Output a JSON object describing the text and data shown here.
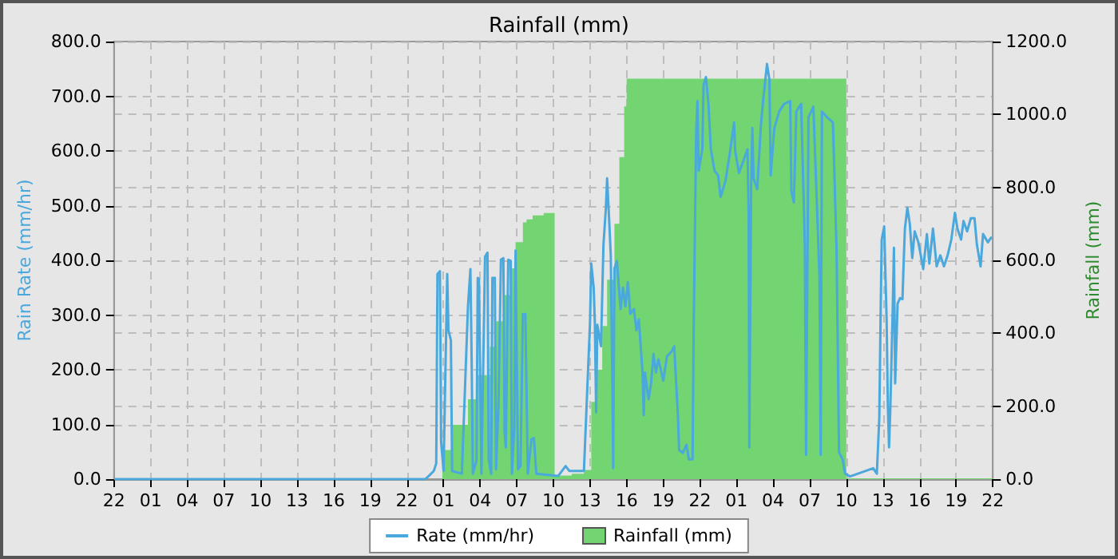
{
  "chart_data": {
    "type": "line",
    "title": "Rainfall (mm)",
    "ylabel": "Rain Rate (mm/hr)",
    "y2label": "Rainfall (mm)",
    "xlim": [
      "--01-01T22:00",
      "--01-04T22:00"
    ],
    "xticks": [
      {
        "value": "--01-01T22:00",
        "label": "22"
      },
      {
        "value": "--01-02T01:00",
        "label": "01"
      },
      {
        "value": "--01-02T04:00",
        "label": "04"
      },
      {
        "value": "--01-02T07:00",
        "label": "07"
      },
      {
        "value": "--01-02T10:00",
        "label": "10"
      },
      {
        "value": "--01-02T13:00",
        "label": "13"
      },
      {
        "value": "--01-02T16:00",
        "label": "16"
      },
      {
        "value": "--01-02T19:00",
        "label": "19"
      },
      {
        "value": "--01-02T22:00",
        "label": "22"
      },
      {
        "value": "--01-03T01:00",
        "label": "01"
      },
      {
        "value": "--01-03T04:00",
        "label": "04"
      },
      {
        "value": "--01-03T07:00",
        "label": "07"
      },
      {
        "value": "--01-03T10:00",
        "label": "10"
      },
      {
        "value": "--01-03T13:00",
        "label": "13"
      },
      {
        "value": "--01-03T16:00",
        "label": "16"
      },
      {
        "value": "--01-03T19:00",
        "label": "19"
      },
      {
        "value": "--01-03T22:00",
        "label": "22"
      },
      {
        "value": "--01-04T01:00",
        "label": "01"
      },
      {
        "value": "--01-04T04:00",
        "label": "04"
      },
      {
        "value": "--01-04T07:00",
        "label": "07"
      },
      {
        "value": "--01-04T10:00",
        "label": "10"
      },
      {
        "value": "--01-04T13:00",
        "label": "13"
      },
      {
        "value": "--01-04T16:00",
        "label": "16"
      },
      {
        "value": "--01-04T19:00",
        "label": "19"
      },
      {
        "value": "--01-04T22:00",
        "label": "22"
      }
    ],
    "ylim": [
      0,
      800
    ],
    "yticks": [
      {
        "value": 0,
        "label": "0.0"
      },
      {
        "value": 100,
        "label": "100.0"
      },
      {
        "value": 200,
        "label": "200.0"
      },
      {
        "value": 300,
        "label": "300.0"
      },
      {
        "value": 400,
        "label": "400.0"
      },
      {
        "value": 500,
        "label": "500.0"
      },
      {
        "value": 600,
        "label": "600.0"
      },
      {
        "value": 700,
        "label": "700.0"
      },
      {
        "value": 800,
        "label": "800.0"
      }
    ],
    "y2lim": [
      0,
      1200
    ],
    "y2ticks": [
      {
        "value": 0,
        "label": "0.0"
      },
      {
        "value": 200,
        "label": "200.0"
      },
      {
        "value": 400,
        "label": "400.0"
      },
      {
        "value": 600,
        "label": "600.0"
      },
      {
        "value": 800,
        "label": "800.0"
      },
      {
        "value": 1000,
        "label": "1000.0"
      },
      {
        "value": 1200,
        "label": "1200.0"
      }
    ],
    "grid": true,
    "legend": "bottom",
    "marker": "none",
    "series": [
      {
        "name": "Rainfall (mm)",
        "type": "area",
        "axis": "y2",
        "color": "#72d572",
        "x": [
          "--01-01T22:00",
          "--01-03T00:48",
          "--01-03T00:54",
          "--01-03T01:42",
          "--01-03T03:00",
          "--01-03T03:42",
          "--01-03T04:48",
          "--01-03T05:18",
          "--01-03T06:00",
          "--01-03T06:36",
          "--01-03T06:54",
          "--01-03T07:30",
          "--01-03T07:48",
          "--01-03T08:18",
          "--01-03T09:12",
          "--01-03T10:06",
          "--01-03T11:30",
          "--01-03T12:30",
          "--01-03T13:06",
          "--01-03T13:36",
          "--01-03T14:00",
          "--01-03T14:24",
          "--01-03T15:00",
          "--01-03T15:24",
          "--01-03T15:48",
          "--01-03T16:00",
          "--01-04T10:00",
          "--01-04T22:00"
        ],
        "values": [
          0,
          0,
          80,
          149,
          219,
          285,
          363,
          433,
          505,
          578,
          650,
          704,
          712,
          723,
          730,
          10,
          15,
          25,
          212,
          300,
          420,
          547,
          700,
          883,
          1022,
          1098,
          2,
          2
        ]
      },
      {
        "name": "Rate (mm/hr)",
        "color": "#4aa8dc",
        "x": [
          "--01-01T22:00",
          "--01-02T23:30",
          "--01-02T23:48",
          "--01-03T00:12",
          "--01-03T00:24",
          "--01-03T00:30",
          "--01-03T00:42",
          "--01-03T00:48",
          "--01-03T01:00",
          "--01-03T01:18",
          "--01-03T01:24",
          "--01-03T01:36",
          "--01-03T01:42",
          "--01-03T02:30",
          "--01-03T03:00",
          "--01-03T03:12",
          "--01-03T03:18",
          "--01-03T03:24",
          "--01-03T03:42",
          "--01-03T03:48",
          "--01-03T03:54",
          "--01-03T04:06",
          "--01-03T04:24",
          "--01-03T04:36",
          "--01-03T04:42",
          "--01-03T04:54",
          "--01-03T05:00",
          "--01-03T05:12",
          "--01-03T05:18",
          "--01-03T05:30",
          "--01-03T05:42",
          "--01-03T05:54",
          "--01-03T06:00",
          "--01-03T06:06",
          "--01-03T06:18",
          "--01-03T06:30",
          "--01-03T06:36",
          "--01-03T06:48",
          "--01-03T06:54",
          "--01-03T07:06",
          "--01-03T07:18",
          "--01-03T07:30",
          "--01-03T07:42",
          "--01-03T07:54",
          "--01-03T08:12",
          "--01-03T08:24",
          "--01-03T08:36",
          "--01-03T10:24",
          "--01-03T11:00",
          "--01-03T11:18",
          "--01-03T12:30",
          "--01-03T13:00",
          "--01-03T13:06",
          "--01-03T13:18",
          "--01-03T13:24",
          "--01-03T13:30",
          "--01-03T13:36",
          "--01-03T13:54",
          "--01-03T14:00",
          "--01-03T14:06",
          "--01-03T14:18",
          "--01-03T14:24",
          "--01-03T14:36",
          "--01-03T14:42",
          "--01-03T14:48",
          "--01-03T14:54",
          "--01-03T15:00",
          "--01-03T15:12",
          "--01-03T15:18",
          "--01-03T15:30",
          "--01-03T15:42",
          "--01-03T15:54",
          "--01-03T16:06",
          "--01-03T16:18",
          "--01-03T16:36",
          "--01-03T16:48",
          "--01-03T17:00",
          "--01-03T17:18",
          "--01-03T17:24",
          "--01-03T17:30",
          "--01-03T17:48",
          "--01-03T18:00",
          "--01-03T18:12",
          "--01-03T18:24",
          "--01-03T18:36",
          "--01-03T18:48",
          "--01-03T19:00",
          "--01-03T19:18",
          "--01-03T19:42",
          "--01-03T19:54",
          "--01-03T20:00",
          "--01-03T20:12",
          "--01-03T20:18",
          "--01-03T20:36",
          "--01-03T20:54",
          "--01-03T21:06",
          "--01-03T21:24",
          "--01-03T21:30",
          "--01-03T21:42",
          "--01-03T21:48",
          "--01-03T21:54",
          "--01-03T22:12",
          "--01-03T22:18",
          "--01-03T22:30",
          "--01-03T22:42",
          "--01-03T22:54",
          "--01-03T23:12",
          "--01-03T23:30",
          "--01-03T23:42",
          "--01-04T00:06",
          "--01-04T00:30",
          "--01-04T00:48",
          "--01-04T00:54",
          "--01-04T01:12",
          "--01-04T01:36",
          "--01-04T01:54",
          "--01-04T02:00",
          "--01-04T02:03",
          "--01-04T02:12",
          "--01-04T02:18",
          "--01-04T02:24",
          "--01-04T02:42",
          "--01-04T03:00",
          "--01-04T03:12",
          "--01-04T03:30",
          "--01-04T03:42",
          "--01-04T03:48",
          "--01-04T04:06",
          "--01-04T04:30",
          "--01-04T04:54",
          "--01-04T05:24",
          "--01-04T05:30",
          "--01-04T05:42",
          "--01-04T05:54",
          "--01-04T06:18",
          "--01-04T06:36",
          "--01-04T06:42",
          "--01-04T06:54",
          "--01-04T07:18",
          "--01-04T07:48",
          "--01-04T07:54",
          "--01-04T08:00",
          "--01-04T08:24",
          "--01-04T08:54",
          "--01-04T09:12",
          "--01-04T09:24",
          "--01-04T09:42",
          "--01-04T09:54",
          "--01-04T10:18",
          "--01-04T12:12",
          "--01-04T12:30",
          "--01-04T12:42",
          "--01-04T12:48",
          "--01-04T12:54",
          "--01-04T13:06",
          "--01-04T13:18",
          "--01-04T13:24",
          "--01-04T13:30",
          "--01-04T13:36",
          "--01-04T13:48",
          "--01-04T13:54",
          "--01-04T14:00",
          "--01-04T14:12",
          "--01-04T14:24",
          "--01-04T14:36",
          "--01-04T14:42",
          "--01-04T14:48",
          "--01-04T15:00",
          "--01-04T15:12",
          "--01-04T15:24",
          "--01-04T15:36",
          "--01-04T15:54",
          "--01-04T16:06",
          "--01-04T16:18",
          "--01-04T16:36",
          "--01-04T16:48",
          "--01-04T17:06",
          "--01-04T17:24",
          "--01-04T17:42",
          "--01-04T18:00",
          "--01-04T18:18",
          "--01-04T18:36",
          "--01-04T18:54",
          "--01-04T19:06",
          "--01-04T19:24",
          "--01-04T19:36",
          "--01-04T19:54",
          "--01-04T20:12",
          "--01-04T20:30",
          "--01-04T20:42",
          "--01-04T21:00",
          "--01-04T21:12",
          "--01-04T21:36",
          "--01-04T21:54"
        ],
        "values": [
          0,
          0,
          6,
          15,
          29,
          375,
          380,
          68,
          15,
          375,
          272,
          254,
          15,
          10,
          316,
          384,
          219,
          10,
          34,
          368,
          366,
          10,
          407,
          414,
          36,
          10,
          368,
          368,
          18,
          136,
          401,
          404,
          88,
          58,
          401,
          399,
          10,
          97,
          418,
          18,
          24,
          302,
          302,
          10,
          73,
          75,
          10,
          6,
          24,
          15,
          15,
          287,
          394,
          350,
          282,
          122,
          282,
          243,
          336,
          428,
          496,
          550,
          458,
          409,
          234,
          20,
          385,
          399,
          370,
          311,
          350,
          316,
          360,
          302,
          311,
          272,
          292,
          195,
          117,
          195,
          146,
          175,
          229,
          195,
          219,
          200,
          180,
          224,
          234,
          243,
          200,
          117,
          53,
          48,
          63,
          36,
          36,
          292,
          637,
          691,
          564,
          603,
          720,
          735,
          686,
          603,
          564,
          555,
          516,
          545,
          603,
          652,
          599,
          560,
          584,
          603,
          477,
          58,
          535,
          642,
          550,
          530,
          647,
          696,
          759,
          730,
          555,
          642,
          672,
          686,
          691,
          526,
          506,
          672,
          686,
          428,
          44,
          662,
          681,
          370,
          44,
          672,
          662,
          652,
          418,
          49,
          36,
          10,
          5,
          20,
          10,
          112,
          287,
          438,
          462,
          292,
          136,
          58,
          126,
          311,
          423,
          175,
          321,
          331,
          329,
          399,
          458,
          496,
          467,
          404,
          453,
          433,
          409,
          384,
          448,
          394,
          458,
          389,
          409,
          389,
          409,
          438,
          487,
          458,
          438,
          472,
          453,
          477,
          477,
          428,
          389,
          448,
          433,
          443
        ]
      }
    ]
  }
}
